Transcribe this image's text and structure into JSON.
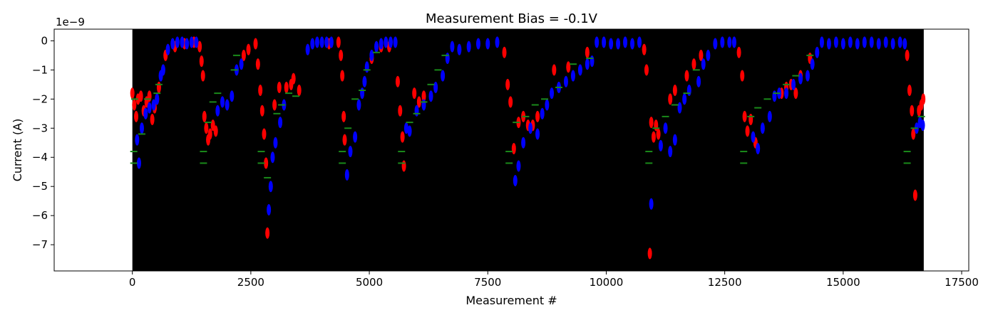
{
  "chart_data": {
    "type": "scatter",
    "title": "Measurement Bias = -0.1V",
    "xlabel": "Measurement #",
    "ylabel": "Current (A)",
    "y_offset_label": "1e−9",
    "xlim": [
      -1650,
      17650
    ],
    "ylim": [
      -7.9,
      0.4
    ],
    "x_ticks": [
      0,
      2500,
      5000,
      7500,
      10000,
      12500,
      15000,
      17500
    ],
    "x_tick_labels": [
      "0",
      "2500",
      "5000",
      "7500",
      "10000",
      "12500",
      "15000",
      "17500"
    ],
    "y_ticks": [
      0,
      -1,
      -2,
      -3,
      -4,
      -5,
      -6,
      -7
    ],
    "y_tick_labels": [
      "0",
      "−1",
      "−2",
      "−3",
      "−4",
      "−5",
      "−6",
      "−7"
    ],
    "plot_background": "#000000",
    "data_x_range": [
      0,
      16700
    ],
    "grid": false,
    "legend": "none",
    "series": [
      {
        "color": "#ff0000",
        "marker": "ellipse",
        "points": [
          [
            0,
            -1.8
          ],
          [
            40,
            -2.2
          ],
          [
            80,
            -2.6
          ],
          [
            120,
            -2.0
          ],
          [
            180,
            -1.9
          ],
          [
            240,
            -2.4
          ],
          [
            300,
            -2.1
          ],
          [
            360,
            -1.9
          ],
          [
            420,
            -2.7
          ],
          [
            470,
            -2.3
          ],
          [
            520,
            -2.0
          ],
          [
            560,
            -1.6
          ],
          [
            700,
            -0.5
          ],
          [
            900,
            -0.2
          ],
          [
            1100,
            -0.1
          ],
          [
            1300,
            -0.05
          ],
          [
            1420,
            -0.2
          ],
          [
            1460,
            -0.7
          ],
          [
            1490,
            -1.2
          ],
          [
            1520,
            -2.6
          ],
          [
            1560,
            -3.0
          ],
          [
            1600,
            -3.4
          ],
          [
            1640,
            -3.2
          ],
          [
            1700,
            -2.9
          ],
          [
            1760,
            -3.1
          ],
          [
            2350,
            -0.5
          ],
          [
            2450,
            -0.3
          ],
          [
            2600,
            -0.1
          ],
          [
            2650,
            -0.8
          ],
          [
            2700,
            -1.7
          ],
          [
            2740,
            -2.4
          ],
          [
            2780,
            -3.2
          ],
          [
            2820,
            -4.2
          ],
          [
            2850,
            -6.6
          ],
          [
            3000,
            -2.2
          ],
          [
            3100,
            -1.6
          ],
          [
            3250,
            -1.6
          ],
          [
            3350,
            -1.5
          ],
          [
            3400,
            -1.3
          ],
          [
            3520,
            -1.7
          ],
          [
            4150,
            -0.1
          ],
          [
            4350,
            -0.05
          ],
          [
            4400,
            -0.5
          ],
          [
            4430,
            -1.2
          ],
          [
            4460,
            -2.6
          ],
          [
            4480,
            -3.4
          ],
          [
            5050,
            -0.6
          ],
          [
            5250,
            -0.2
          ],
          [
            5420,
            -0.2
          ],
          [
            5600,
            -1.4
          ],
          [
            5650,
            -2.4
          ],
          [
            5700,
            -3.3
          ],
          [
            5730,
            -4.3
          ],
          [
            5950,
            -1.8
          ],
          [
            6050,
            -2.1
          ],
          [
            6150,
            -1.9
          ],
          [
            7850,
            -0.4
          ],
          [
            7920,
            -1.5
          ],
          [
            7980,
            -2.1
          ],
          [
            8050,
            -3.7
          ],
          [
            8150,
            -2.8
          ],
          [
            8250,
            -2.6
          ],
          [
            8350,
            -2.9
          ],
          [
            8450,
            -2.9
          ],
          [
            8550,
            -2.6
          ],
          [
            8900,
            -1.0
          ],
          [
            9200,
            -0.9
          ],
          [
            9600,
            -0.4
          ],
          [
            10800,
            -0.3
          ],
          [
            10850,
            -1.0
          ],
          [
            10950,
            -2.8
          ],
          [
            11000,
            -3.3
          ],
          [
            11050,
            -2.9
          ],
          [
            10920,
            -7.3
          ],
          [
            11100,
            -3.2
          ],
          [
            11350,
            -2.0
          ],
          [
            11450,
            -1.7
          ],
          [
            11700,
            -1.2
          ],
          [
            11850,
            -0.8
          ],
          [
            12000,
            -0.5
          ],
          [
            12800,
            -0.4
          ],
          [
            12870,
            -1.2
          ],
          [
            12920,
            -2.6
          ],
          [
            12980,
            -3.1
          ],
          [
            13050,
            -2.7
          ],
          [
            13150,
            -3.5
          ],
          [
            13700,
            -1.8
          ],
          [
            13800,
            -1.6
          ],
          [
            13900,
            -1.5
          ],
          [
            14000,
            -1.8
          ],
          [
            14100,
            -1.2
          ],
          [
            14300,
            -0.6
          ],
          [
            16350,
            -0.5
          ],
          [
            16400,
            -1.7
          ],
          [
            16450,
            -2.4
          ],
          [
            16480,
            -3.2
          ],
          [
            16520,
            -5.3
          ],
          [
            16600,
            -2.4
          ],
          [
            16650,
            -2.2
          ],
          [
            16690,
            -2.0
          ]
        ]
      },
      {
        "color": "#0000ff",
        "marker": "ellipse",
        "points": [
          [
            100,
            -3.4
          ],
          [
            140,
            -4.2
          ],
          [
            200,
            -3.0
          ],
          [
            280,
            -2.5
          ],
          [
            360,
            -2.3
          ],
          [
            450,
            -2.2
          ],
          [
            520,
            -2.0
          ],
          [
            600,
            -1.2
          ],
          [
            650,
            -1.0
          ],
          [
            750,
            -0.3
          ],
          [
            850,
            -0.1
          ],
          [
            950,
            -0.05
          ],
          [
            1050,
            -0.05
          ],
          [
            1150,
            -0.1
          ],
          [
            1250,
            -0.05
          ],
          [
            1350,
            -0.05
          ],
          [
            1800,
            -2.4
          ],
          [
            1900,
            -2.1
          ],
          [
            2000,
            -2.2
          ],
          [
            2100,
            -1.9
          ],
          [
            2200,
            -1.0
          ],
          [
            2300,
            -0.8
          ],
          [
            2880,
            -5.8
          ],
          [
            2920,
            -5.0
          ],
          [
            2960,
            -4.0
          ],
          [
            3020,
            -3.5
          ],
          [
            3120,
            -2.8
          ],
          [
            3200,
            -2.2
          ],
          [
            3700,
            -0.3
          ],
          [
            3800,
            -0.1
          ],
          [
            3900,
            -0.05
          ],
          [
            4000,
            -0.05
          ],
          [
            4100,
            -0.05
          ],
          [
            4200,
            -0.05
          ],
          [
            4530,
            -4.6
          ],
          [
            4600,
            -3.8
          ],
          [
            4700,
            -3.3
          ],
          [
            4780,
            -2.2
          ],
          [
            4850,
            -1.8
          ],
          [
            4900,
            -1.4
          ],
          [
            4950,
            -0.9
          ],
          [
            5050,
            -0.5
          ],
          [
            5150,
            -0.2
          ],
          [
            5250,
            -0.1
          ],
          [
            5350,
            -0.05
          ],
          [
            5450,
            -0.05
          ],
          [
            5550,
            -0.05
          ],
          [
            5780,
            -3.0
          ],
          [
            5850,
            -3.1
          ],
          [
            6000,
            -2.4
          ],
          [
            6150,
            -2.2
          ],
          [
            6300,
            -1.9
          ],
          [
            6400,
            -1.6
          ],
          [
            6550,
            -1.2
          ],
          [
            6650,
            -0.6
          ],
          [
            6750,
            -0.2
          ],
          [
            6900,
            -0.3
          ],
          [
            7100,
            -0.2
          ],
          [
            7300,
            -0.1
          ],
          [
            7500,
            -0.1
          ],
          [
            7700,
            -0.05
          ],
          [
            8080,
            -4.8
          ],
          [
            8150,
            -4.3
          ],
          [
            8250,
            -3.5
          ],
          [
            8400,
            -3.0
          ],
          [
            8550,
            -3.2
          ],
          [
            8650,
            -2.5
          ],
          [
            8750,
            -2.2
          ],
          [
            8850,
            -1.8
          ],
          [
            9000,
            -1.6
          ],
          [
            9150,
            -1.4
          ],
          [
            9300,
            -1.2
          ],
          [
            9450,
            -1.0
          ],
          [
            9600,
            -0.8
          ],
          [
            9700,
            -0.7
          ],
          [
            9800,
            -0.05
          ],
          [
            9950,
            -0.05
          ],
          [
            10100,
            -0.1
          ],
          [
            10250,
            -0.1
          ],
          [
            10400,
            -0.05
          ],
          [
            10550,
            -0.1
          ],
          [
            10700,
            -0.05
          ],
          [
            10950,
            -5.6
          ],
          [
            11150,
            -3.6
          ],
          [
            11250,
            -3.0
          ],
          [
            11350,
            -3.8
          ],
          [
            11450,
            -3.4
          ],
          [
            11550,
            -2.3
          ],
          [
            11650,
            -2.0
          ],
          [
            11750,
            -1.7
          ],
          [
            11950,
            -1.4
          ],
          [
            12050,
            -0.8
          ],
          [
            12150,
            -0.5
          ],
          [
            12300,
            -0.1
          ],
          [
            12450,
            -0.05
          ],
          [
            12600,
            -0.05
          ],
          [
            12700,
            -0.05
          ],
          [
            13100,
            -3.3
          ],
          [
            13200,
            -3.7
          ],
          [
            13300,
            -3.0
          ],
          [
            13450,
            -2.6
          ],
          [
            13550,
            -1.9
          ],
          [
            13650,
            -1.8
          ],
          [
            13800,
            -1.8
          ],
          [
            13950,
            -1.5
          ],
          [
            14100,
            -1.3
          ],
          [
            14250,
            -1.2
          ],
          [
            14350,
            -0.8
          ],
          [
            14450,
            -0.4
          ],
          [
            14550,
            -0.05
          ],
          [
            14700,
            -0.1
          ],
          [
            14850,
            -0.05
          ],
          [
            15000,
            -0.1
          ],
          [
            15150,
            -0.05
          ],
          [
            15300,
            -0.1
          ],
          [
            15450,
            -0.05
          ],
          [
            15600,
            -0.05
          ],
          [
            15750,
            -0.1
          ],
          [
            15900,
            -0.05
          ],
          [
            16050,
            -0.1
          ],
          [
            16200,
            -0.05
          ],
          [
            16300,
            -0.1
          ],
          [
            16550,
            -3.0
          ],
          [
            16620,
            -2.8
          ],
          [
            16680,
            -2.9
          ]
        ]
      },
      {
        "color": "#1a8a1a",
        "marker": "dash",
        "points": [
          [
            30,
            -3.8
          ],
          [
            30,
            -4.2
          ],
          [
            50,
            -2.0
          ],
          [
            200,
            -3.2
          ],
          [
            320,
            -2.0
          ],
          [
            520,
            -1.8
          ],
          [
            560,
            -1.5
          ],
          [
            1500,
            -3.8
          ],
          [
            1500,
            -4.2
          ],
          [
            1600,
            -2.8
          ],
          [
            1700,
            -2.1
          ],
          [
            1800,
            -1.8
          ],
          [
            2150,
            -1.0
          ],
          [
            2200,
            -0.5
          ],
          [
            2720,
            -3.8
          ],
          [
            2720,
            -4.2
          ],
          [
            2850,
            -4.7
          ],
          [
            3050,
            -2.5
          ],
          [
            3150,
            -2.2
          ],
          [
            3300,
            -1.8
          ],
          [
            3450,
            -1.9
          ],
          [
            4430,
            -3.8
          ],
          [
            4430,
            -4.2
          ],
          [
            4550,
            -3.0
          ],
          [
            4700,
            -2.0
          ],
          [
            4850,
            -1.7
          ],
          [
            4950,
            -1.0
          ],
          [
            5150,
            -0.4
          ],
          [
            5680,
            -3.8
          ],
          [
            5680,
            -4.2
          ],
          [
            5850,
            -2.8
          ],
          [
            6000,
            -2.5
          ],
          [
            6150,
            -2.1
          ],
          [
            6300,
            -1.5
          ],
          [
            6450,
            -1.0
          ],
          [
            6600,
            -0.5
          ],
          [
            7950,
            -3.8
          ],
          [
            7950,
            -4.2
          ],
          [
            8100,
            -2.8
          ],
          [
            8300,
            -2.6
          ],
          [
            8500,
            -2.2
          ],
          [
            8700,
            -2.0
          ],
          [
            9000,
            -1.6
          ],
          [
            9300,
            -0.8
          ],
          [
            9650,
            -0.6
          ],
          [
            10900,
            -3.8
          ],
          [
            10900,
            -4.2
          ],
          [
            11050,
            -3.0
          ],
          [
            11250,
            -2.6
          ],
          [
            11450,
            -2.2
          ],
          [
            11700,
            -1.8
          ],
          [
            11900,
            -1.0
          ],
          [
            12900,
            -3.8
          ],
          [
            12900,
            -4.2
          ],
          [
            13050,
            -2.6
          ],
          [
            13200,
            -2.3
          ],
          [
            13400,
            -2.0
          ],
          [
            13600,
            -1.8
          ],
          [
            13800,
            -1.5
          ],
          [
            14000,
            -1.2
          ],
          [
            14300,
            -0.5
          ],
          [
            16350,
            -3.8
          ],
          [
            16350,
            -4.2
          ],
          [
            16500,
            -3.0
          ],
          [
            16650,
            -2.6
          ]
        ]
      }
    ]
  }
}
